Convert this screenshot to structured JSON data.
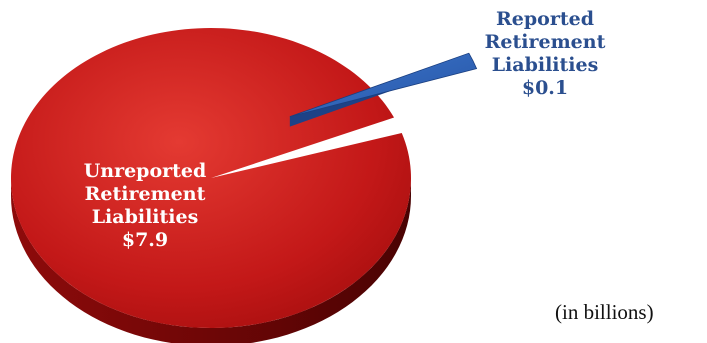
{
  "chart_data": {
    "type": "pie",
    "units_note": "(in billions)",
    "slices": [
      {
        "label_lines": [
          "Unreported",
          "Retirement",
          "Liabilities"
        ],
        "value_label": "$7.9",
        "value": 7.9,
        "color": "#c81a1a"
      },
      {
        "label_lines": [
          "Reported",
          "Retirement",
          "Liabilities"
        ],
        "value_label": "$0.1",
        "value": 0.1,
        "color": "#2e63b8",
        "exploded": true
      }
    ]
  }
}
